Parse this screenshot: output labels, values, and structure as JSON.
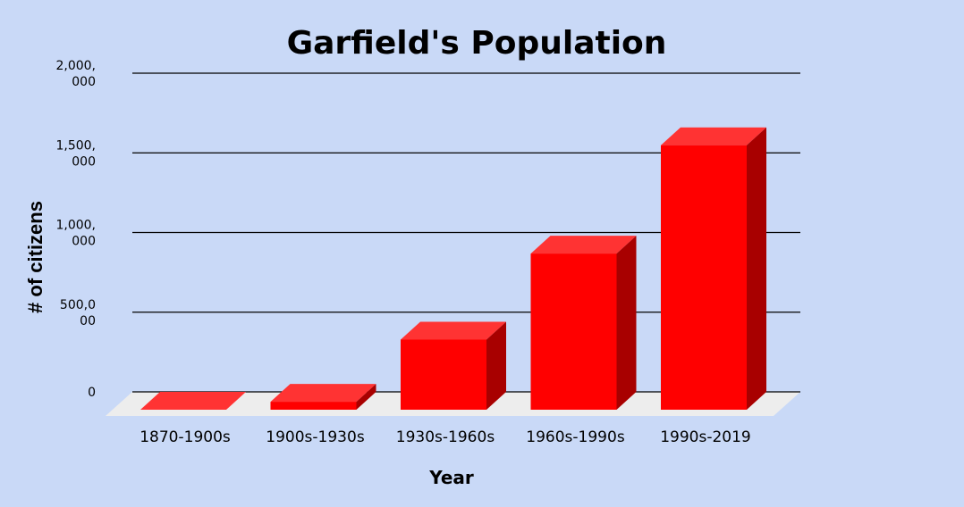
{
  "chart_data": {
    "type": "bar",
    "title": "Garfield's Population",
    "xlabel": "Year",
    "ylabel": "# of citizens",
    "categories": [
      "1870-1900s",
      "1900s-1930s",
      "1930s-1960s",
      "1960s-1990s",
      "1990s-2019"
    ],
    "values": [
      0,
      50000,
      440000,
      980000,
      1660000
    ],
    "ylim": [
      0,
      2000000
    ],
    "yticks": [
      {
        "value": 0,
        "lines": [
          "0"
        ]
      },
      {
        "value": 500000,
        "lines": [
          "500,0",
          "00"
        ]
      },
      {
        "value": 1000000,
        "lines": [
          "1,000,",
          "000"
        ]
      },
      {
        "value": 1500000,
        "lines": [
          "1,500,",
          "000"
        ]
      },
      {
        "value": 2000000,
        "lines": [
          "2,000,",
          "000"
        ]
      }
    ],
    "grid": true,
    "legend": "none",
    "colors": {
      "background": "#c9d9f7",
      "bar_front": "#ff0000",
      "bar_top": "#ff3333",
      "bar_side": "#a80000",
      "floor": "#ededed",
      "grid": "#000000"
    }
  }
}
